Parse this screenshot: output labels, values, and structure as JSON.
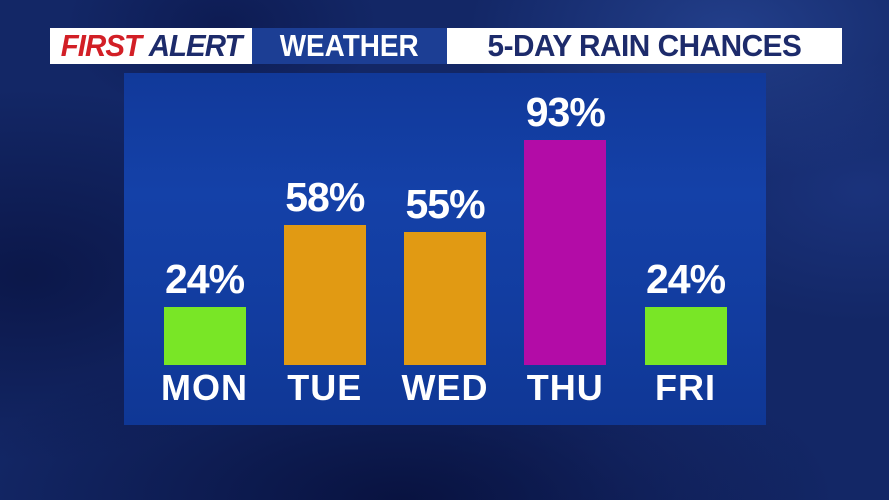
{
  "header": {
    "brand_first": "FIRST",
    "brand_alert": "ALERT",
    "brand_weather": "WEATHER",
    "title": "5-DAY RAIN CHANCES"
  },
  "colors": {
    "brand_red": "#d21f26",
    "brand_navy": "#1d2b6b",
    "weather_badge_bg": "#1c3e94",
    "panel_blue": "#1441a8",
    "background_navy": "#132766",
    "label_white": "#ffffff"
  },
  "chart_data": {
    "type": "bar",
    "title": "5-DAY RAIN CHANCES",
    "categories": [
      "MON",
      "TUE",
      "WED",
      "THU",
      "FRI"
    ],
    "values": [
      24,
      58,
      55,
      93,
      24
    ],
    "unit": "%",
    "value_labels": [
      "24%",
      "58%",
      "55%",
      "93%",
      "24%"
    ],
    "bar_colors": [
      "#79e626",
      "#e19a13",
      "#e19a13",
      "#b30ca7",
      "#79e626"
    ],
    "xlabel": "",
    "ylabel": "",
    "ylim": [
      0,
      100
    ],
    "grid": false,
    "legend": null
  }
}
